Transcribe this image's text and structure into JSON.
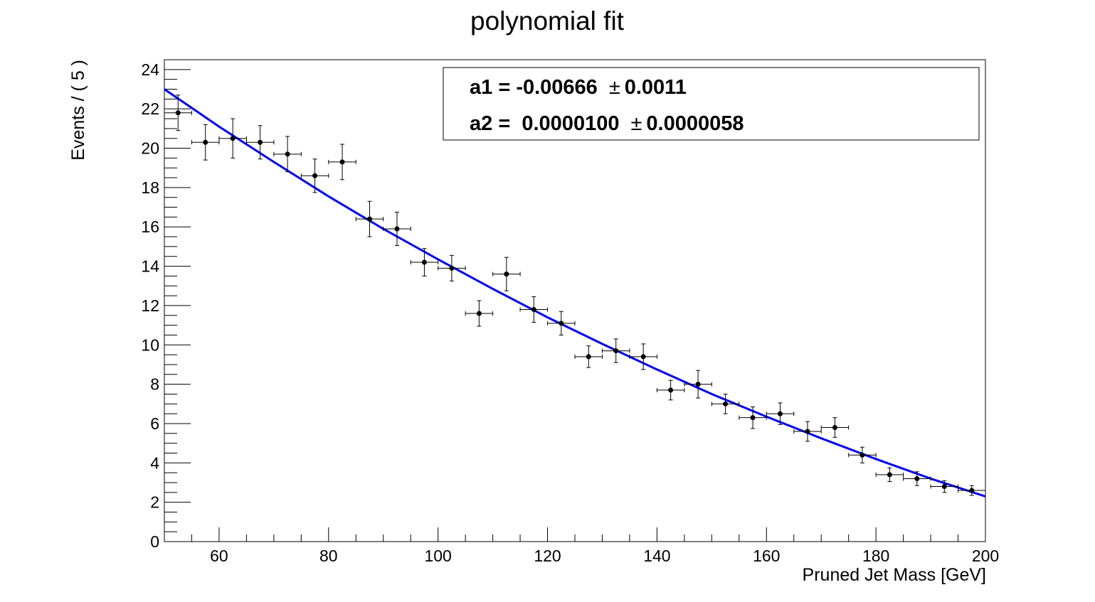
{
  "chart_data": {
    "type": "scatter",
    "title": "polynomial fit",
    "xlabel": "Pruned Jet Mass [GeV]",
    "ylabel": "Events / ( 5 )",
    "xlim": [
      50,
      200
    ],
    "ylim": [
      0,
      24.5
    ],
    "x_ticks": [
      60,
      80,
      100,
      120,
      140,
      160,
      180,
      200
    ],
    "y_ticks": [
      0,
      2,
      4,
      6,
      8,
      10,
      12,
      14,
      16,
      18,
      20,
      22,
      24
    ],
    "bin_width": 5,
    "grid": false,
    "legend_position": "top-right",
    "series": [
      {
        "kind": "data-points-with-errors",
        "color": "#000000",
        "x": [
          52.5,
          57.5,
          62.5,
          67.5,
          72.5,
          77.5,
          82.5,
          87.5,
          92.5,
          97.5,
          102.5,
          107.5,
          112.5,
          117.5,
          122.5,
          127.5,
          132.5,
          137.5,
          142.5,
          147.5,
          152.5,
          157.5,
          162.5,
          167.5,
          172.5,
          177.5,
          182.5,
          187.5,
          192.5,
          197.5
        ],
        "y": [
          21.8,
          20.3,
          20.5,
          20.3,
          19.7,
          18.6,
          19.3,
          16.4,
          15.9,
          14.2,
          13.9,
          11.6,
          13.6,
          11.8,
          11.1,
          9.4,
          9.7,
          9.4,
          7.7,
          8.0,
          7.0,
          6.3,
          6.5,
          5.6,
          5.8,
          4.4,
          3.4,
          3.2,
          2.8,
          2.6
        ],
        "y_err": [
          0.9,
          0.9,
          1.0,
          0.85,
          0.9,
          0.85,
          0.9,
          0.9,
          0.85,
          0.7,
          0.65,
          0.65,
          0.85,
          0.65,
          0.6,
          0.55,
          0.6,
          0.65,
          0.5,
          0.7,
          0.5,
          0.55,
          0.55,
          0.5,
          0.5,
          0.4,
          0.35,
          0.35,
          0.3,
          0.25
        ]
      },
      {
        "kind": "fit-curve",
        "color": "#0000ee",
        "x": [
          50,
          60,
          70,
          80,
          90,
          100,
          110,
          120,
          130,
          140,
          150,
          160,
          170,
          180,
          190,
          200
        ],
        "y": [
          23.0,
          21.1,
          19.3,
          17.55,
          15.9,
          14.35,
          12.85,
          11.4,
          10.05,
          8.75,
          7.5,
          6.35,
          5.25,
          4.2,
          3.2,
          2.3
        ]
      }
    ],
    "legend": {
      "lines": [
        {
          "name": "a1 = ",
          "value": "-0.00666",
          "pm": "±",
          "error": "0.0011"
        },
        {
          "name": "a2 = ",
          "value": " 0.0000100",
          "pm": "±",
          "error": "0.0000058"
        }
      ]
    }
  }
}
